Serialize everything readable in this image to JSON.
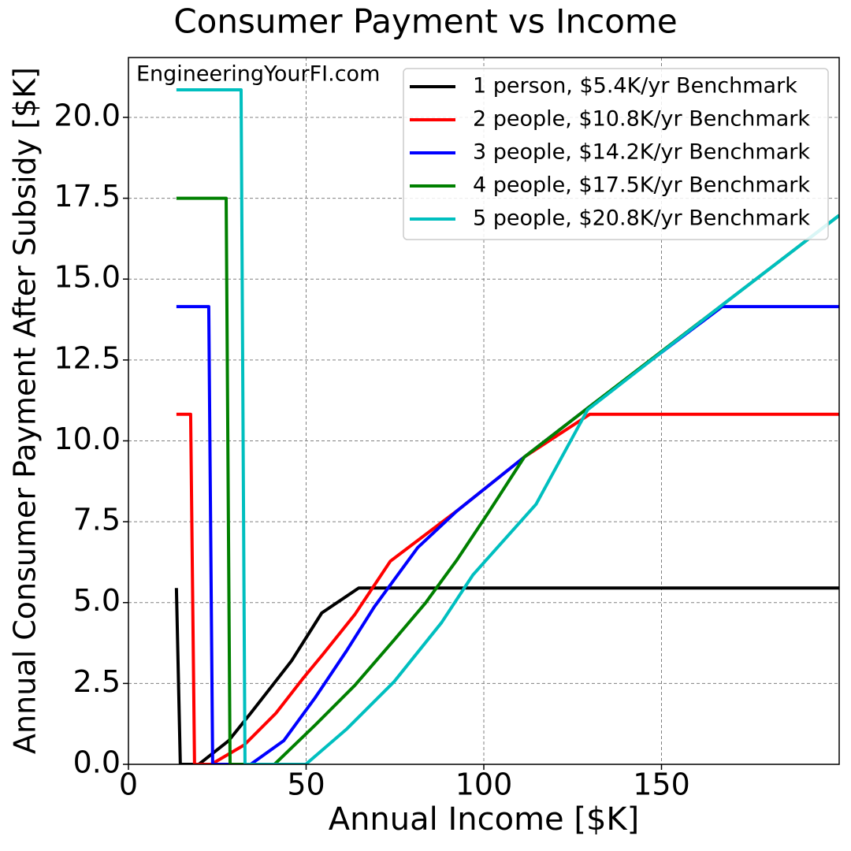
{
  "chart_data": {
    "type": "line",
    "title": "Consumer Payment vs Income",
    "x_label": "Annual Income [$K]",
    "y_label": "Annual Consumer Payment After Subsidy [$K]",
    "annotation": "EngineeringYourFI.com",
    "xlim": [
      0,
      200
    ],
    "ylim": [
      0,
      21.85
    ],
    "xticks": [
      0,
      50,
      100,
      150
    ],
    "yticks": [
      {
        "value": 0,
        "label": "0.0"
      },
      2.5,
      {
        "value": 5,
        "label": "5.0"
      },
      7.5,
      {
        "value": 10,
        "label": "10.0"
      },
      12.5,
      {
        "value": 15,
        "label": "15.0"
      },
      17.5,
      {
        "value": 20,
        "label": "20.0"
      }
    ],
    "grid": true,
    "legend": "upper right",
    "series": [
      {
        "name": "1 person, $5.4K/yr Benchmark",
        "color": "#000000",
        "x": [
          13.5,
          14.6,
          19.8,
          28.2,
          34.4,
          40.8,
          45.9,
          54.4,
          64.8,
          200
        ],
        "values": [
          5.45,
          0,
          0,
          0.73,
          1.58,
          2.48,
          3.2,
          4.68,
          5.45,
          5.45
        ]
      },
      {
        "name": "2 people, $10.8K/yr Benchmark",
        "color": "#ff0000",
        "x": [
          13.5,
          17.5,
          18.6,
          23.3,
          32.6,
          41.5,
          49.3,
          54.8,
          63.7,
          73.7,
          92.5,
          111.4,
          129.8,
          200
        ],
        "values": [
          10.82,
          10.82,
          0,
          0,
          0.6,
          1.58,
          2.68,
          3.41,
          4.63,
          6.28,
          7.84,
          9.5,
          10.82,
          10.82
        ]
      },
      {
        "name": "3 people, $14.2K/yr Benchmark",
        "color": "#0000ff",
        "x": [
          13.5,
          22.6,
          23.7,
          34.4,
          43.7,
          52.6,
          61.5,
          69.2,
          81.4,
          92.5,
          111.4,
          129.8,
          167.1,
          200
        ],
        "values": [
          14.15,
          14.15,
          0,
          0,
          0.73,
          2.07,
          3.53,
          4.87,
          6.7,
          7.84,
          9.5,
          11.06,
          14.15,
          14.15
        ]
      },
      {
        "name": "4 people, $17.5K/yr Benchmark",
        "color": "#008000",
        "x": [
          13.5,
          27.5,
          28.6,
          41.1,
          52.6,
          63.7,
          74.8,
          83.6,
          92.5,
          101.4,
          111.4,
          129.8,
          167.1,
          200
        ],
        "values": [
          17.5,
          17.5,
          0,
          0,
          1.22,
          2.44,
          3.85,
          4.99,
          6.33,
          7.8,
          9.5,
          11.06,
          14.2,
          16.97
        ]
      },
      {
        "name": "5 people, $20.8K/yr Benchmark",
        "color": "#00bfbf",
        "x": [
          13.5,
          31.7,
          32.8,
          49.9,
          61.5,
          74.8,
          88.1,
          96.9,
          114.7,
          129.2,
          167.1,
          200
        ],
        "values": [
          20.85,
          20.85,
          0,
          0,
          1.1,
          2.56,
          4.38,
          5.85,
          8.04,
          10.96,
          14.2,
          16.97
        ]
      }
    ]
  }
}
